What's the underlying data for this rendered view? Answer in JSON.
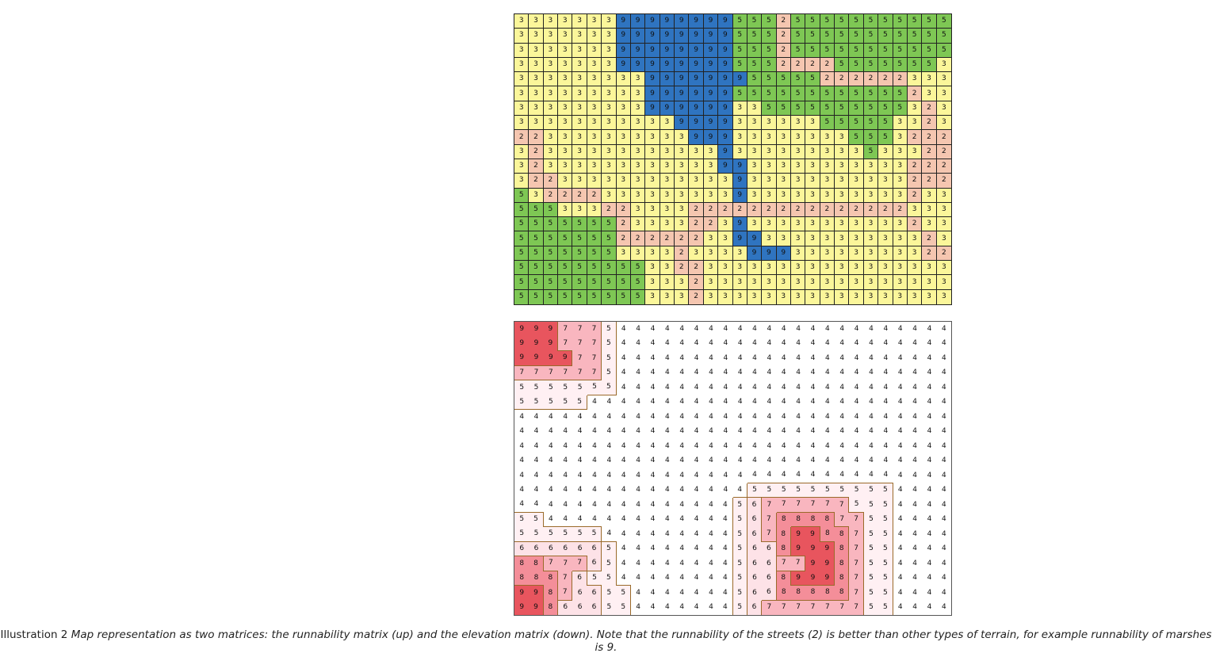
{
  "runnability_matrix": {
    "rows": [
      "333333399999999555255555555555",
      "333333399999999555255555555555",
      "333333399999999555255555555555",
      "333333399999999555222255555553",
      "333333333999999955555222222333",
      "333333333999999555555555555233",
      "333333333999999335555555555323",
      "333333333339999333333555553323",
      "223333333333999333333335553222",
      "323333333333339333333333533322",
      "323333333333339933333333333222",
      "322333333333333933333333333222",
      "532222333333333933333333333233",
      "555333223333222222222222222333",
      "555555523333223933333333333233",
      "555555522222233993333333333323",
      "555555533332333399933333333322",
      "555555555332233333333333333333",
      "555555555333233333333333333333",
      "555555555333233333333333333333"
    ],
    "colors": {
      "2": "#f5c6b0",
      "3": "#fbf69a",
      "5": "#7ec754",
      "9": "#2f74c0"
    }
  },
  "elevation_matrix": {
    "rows": [
      "999777544444444444444444444444",
      "999777544444444444444444444444",
      "999977544444444444444444444444",
      "777777544444444444444444444444",
      "555555544444444444444444444444",
      "555554444444444444444444444444",
      "444444444444444444444444444444",
      "444444444444444444444444444444",
      "444444444444444444444444444444",
      "444444444444444444444444444444",
      "444444444444444444444444444444",
      "444444444444444455555555554444",
      "444444444444444567777775554444",
      "554444444444444567888877554444",
      "555555444444444567899887554444",
      "666666544444444566899987554444",
      "887776544444444566779987554444",
      "888765544444444566899987554444",
      "998766554444444566888887554444",
      "998666554444444567777777554444"
    ],
    "colors": {
      "4": "#ffffff",
      "5": "#fff0f3",
      "6": "#fde2e7",
      "7": "#f9b6bf",
      "8": "#f48e99",
      "9": "#e8555e"
    }
  },
  "caption": {
    "prefix": "Illustration 2 ",
    "text": "Map representation as two matrices: the runnability matrix (up) and the elevation matrix (down). Note that the runnability of the streets (2) is better than other types of terrain, for example runnability of marshes is 9."
  }
}
